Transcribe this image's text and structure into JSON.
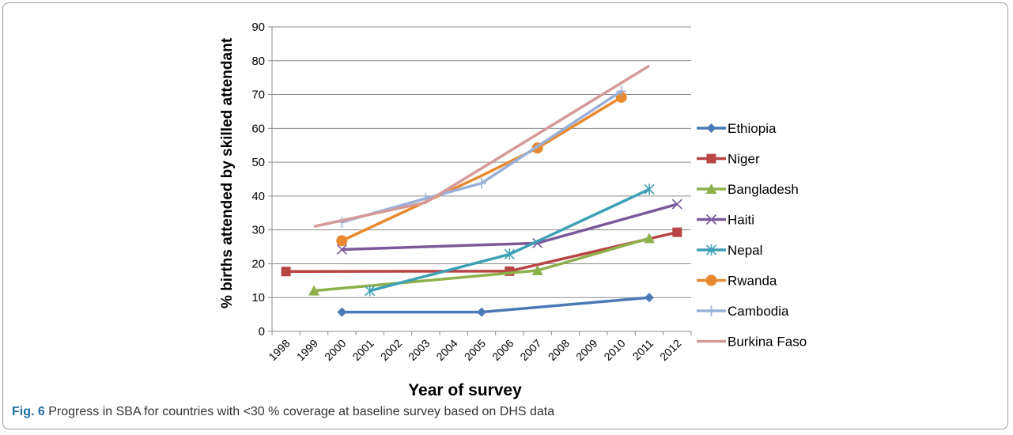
{
  "caption": {
    "label": "Fig. 6",
    "text": "Progress in SBA for countries with <30 % coverage at baseline survey based on DHS data"
  },
  "chart_data": {
    "type": "line",
    "xlabel": "Year of survey",
    "ylabel": "% births attended by skilled attendant",
    "categories": [
      "1998",
      "1999",
      "2000",
      "2001",
      "2002",
      "2003",
      "2004",
      "2005",
      "2006",
      "2007",
      "2008",
      "2009",
      "2010",
      "2011",
      "2012"
    ],
    "ylim": [
      0,
      90
    ],
    "yticks": [
      0,
      10,
      20,
      30,
      40,
      50,
      60,
      70,
      80,
      90
    ],
    "grid": true,
    "legend_position": "right",
    "series": [
      {
        "name": "Ethiopia",
        "color": "#4a7ab5",
        "marker": "diamond",
        "points": [
          [
            2000,
            5.7
          ],
          [
            2005,
            5.7
          ],
          [
            2011,
            10.0
          ]
        ]
      },
      {
        "name": "Niger",
        "color": "#b84444",
        "marker": "square",
        "points": [
          [
            1998,
            17.7
          ],
          [
            2006,
            17.8
          ],
          [
            2012,
            29.3
          ]
        ]
      },
      {
        "name": "Bangladesh",
        "color": "#8eb04a",
        "marker": "triangle",
        "points": [
          [
            1999,
            12.0
          ],
          [
            2007,
            18.0
          ],
          [
            2011,
            27.5
          ]
        ]
      },
      {
        "name": "Haiti",
        "color": "#7a5a9a",
        "marker": "x",
        "points": [
          [
            2000,
            24.2
          ],
          [
            2007,
            26.1
          ],
          [
            2012,
            37.6
          ]
        ]
      },
      {
        "name": "Nepal",
        "color": "#3ea0b5",
        "marker": "star",
        "points": [
          [
            2001,
            12.0
          ],
          [
            2006,
            22.8
          ],
          [
            2011,
            42.0
          ]
        ]
      },
      {
        "name": "Rwanda",
        "color": "#e8892e",
        "marker": "circle",
        "points": [
          [
            2000,
            26.8
          ],
          [
            2005,
            46.0
          ],
          [
            2007,
            54.2
          ],
          [
            2010,
            69.2
          ]
        ]
      },
      {
        "name": "Cambodia",
        "color": "#9ab0d8",
        "marker": "plus",
        "points": [
          [
            2000,
            32.3
          ],
          [
            2003,
            39.3
          ],
          [
            2005,
            43.8
          ],
          [
            2010,
            71.0
          ]
        ]
      },
      {
        "name": "Burkina Faso",
        "color": "#d49a9a",
        "marker": "none",
        "points": [
          [
            1999,
            31.0
          ],
          [
            2003,
            38.1
          ],
          [
            2011,
            78.5
          ]
        ]
      }
    ]
  }
}
